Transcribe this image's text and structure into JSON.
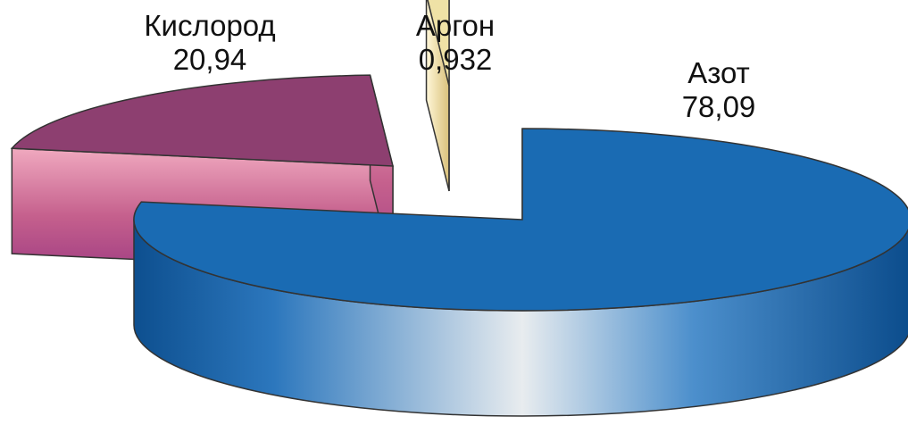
{
  "chart_data": {
    "type": "pie",
    "title": "",
    "categories": [
      "Азот",
      "Кислород",
      "Аргон"
    ],
    "values": [
      78.09,
      20.94,
      0.932
    ],
    "labels": [
      {
        "name": "Азот",
        "value": "78,09"
      },
      {
        "name": "Кислород",
        "value": "20,94"
      },
      {
        "name": "Аргон",
        "value": "0,932"
      }
    ],
    "colors": [
      "#1a6bb3",
      "#8d3f70",
      "#efe2a6"
    ],
    "legend": "none"
  }
}
